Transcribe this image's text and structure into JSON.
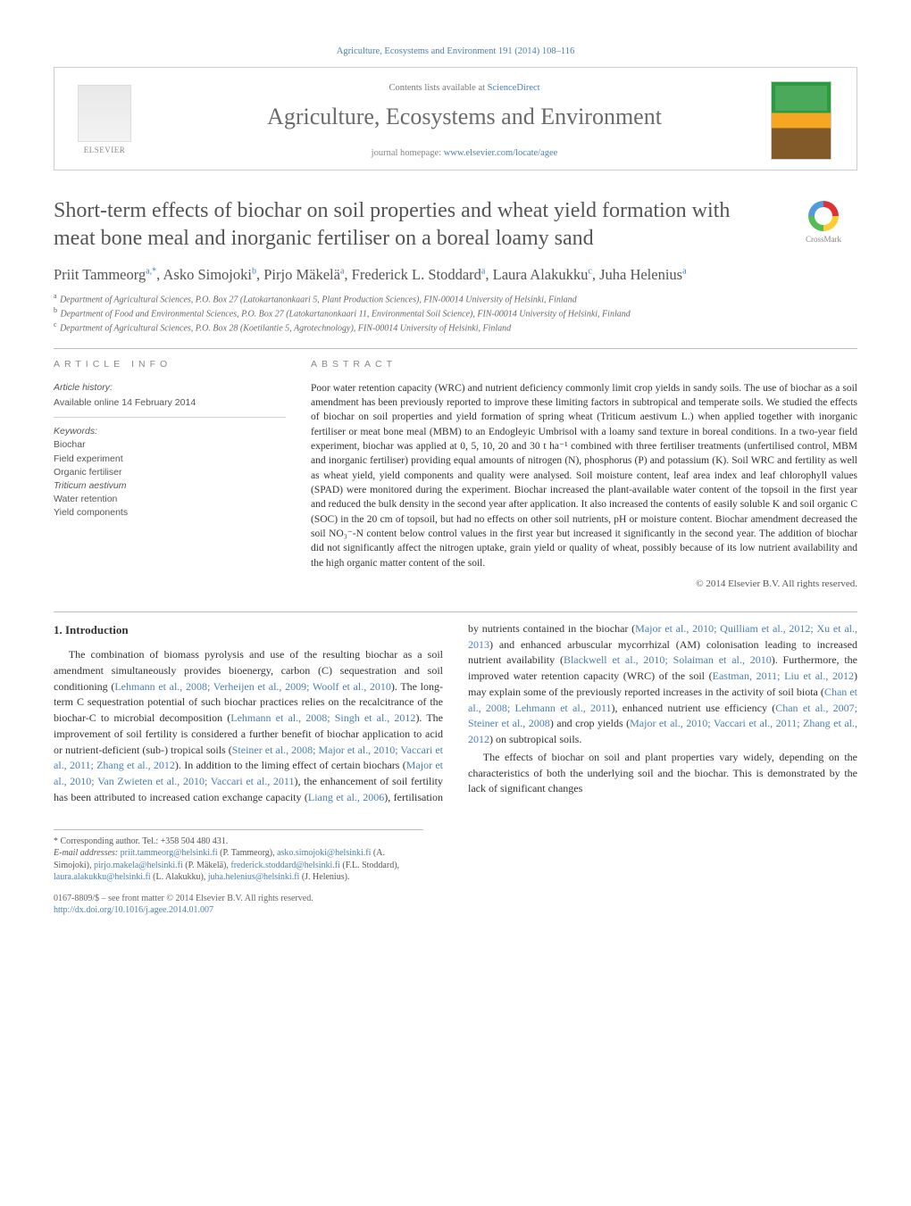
{
  "runningHead": "Agriculture, Ecosystems and Environment 191 (2014) 108–116",
  "masthead": {
    "contentsLine_pre": "Contents lists available at ",
    "contentsLine_link": "ScienceDirect",
    "journalName": "Agriculture, Ecosystems and Environment",
    "homepage_pre": "journal homepage: ",
    "homepage_link": "www.elsevier.com/locate/agee",
    "publisherWord": "ELSEVIER"
  },
  "crossmarkLabel": "CrossMark",
  "title": "Short-term effects of biochar on soil properties and wheat yield formation with meat bone meal and inorganic fertiliser on a boreal loamy sand",
  "authors": [
    {
      "name": "Priit Tammeorg",
      "marks": "a,*"
    },
    {
      "name": "Asko Simojoki",
      "marks": "b"
    },
    {
      "name": "Pirjo Mäkelä",
      "marks": "a"
    },
    {
      "name": "Frederick L. Stoddard",
      "marks": "a"
    },
    {
      "name": "Laura Alakukku",
      "marks": "c"
    },
    {
      "name": "Juha Helenius",
      "marks": "a"
    }
  ],
  "affiliations": [
    {
      "tag": "a",
      "text": "Department of Agricultural Sciences, P.O. Box 27 (Latokartanonkaari 5, Plant Production Sciences), FIN-00014 University of Helsinki, Finland"
    },
    {
      "tag": "b",
      "text": "Department of Food and Environmental Sciences, P.O. Box 27 (Latokartanonkaari 11, Environmental Soil Science), FIN-00014 University of Helsinki, Finland"
    },
    {
      "tag": "c",
      "text": "Department of Agricultural Sciences, P.O. Box 28 (Koetilantie 5, Agrotechnology), FIN-00014 University of Helsinki, Finland"
    }
  ],
  "info": {
    "heading": "article info",
    "historyLabel": "Article history:",
    "historyLine": "Available online 14 February 2014",
    "keywordsLabel": "Keywords:",
    "keywords": [
      "Biochar",
      "Field experiment",
      "Organic fertiliser",
      "Triticum aestivum",
      "Water retention",
      "Yield components"
    ]
  },
  "abstract": {
    "heading": "abstract",
    "text": "Poor water retention capacity (WRC) and nutrient deficiency commonly limit crop yields in sandy soils. The use of biochar as a soil amendment has been previously reported to improve these limiting factors in subtropical and temperate soils. We studied the effects of biochar on soil properties and yield formation of spring wheat (Triticum aestivum L.) when applied together with inorganic fertiliser or meat bone meal (MBM) to an Endogleyic Umbrisol with a loamy sand texture in boreal conditions. In a two-year field experiment, biochar was applied at 0, 5, 10, 20 and 30 t ha⁻¹ combined with three fertiliser treatments (unfertilised control, MBM and inorganic fertiliser) providing equal amounts of nitrogen (N), phosphorus (P) and potassium (K). Soil WRC and fertility as well as wheat yield, yield components and quality were analysed. Soil moisture content, leaf area index and leaf chlorophyll values (SPAD) were monitored during the experiment. Biochar increased the plant-available water content of the topsoil in the first year and reduced the bulk density in the second year after application. It also increased the contents of easily soluble K and soil organic C (SOC) in the 20 cm of topsoil, but had no effects on other soil nutrients, pH or moisture content. Biochar amendment decreased the soil NO₃⁻-N content below control values in the first year but increased it significantly in the second year. The addition of biochar did not significantly affect the nitrogen uptake, grain yield or quality of wheat, possibly because of its low nutrient availability and the high organic matter content of the soil.",
    "copyright": "© 2014 Elsevier B.V. All rights reserved."
  },
  "section1": {
    "heading": "1. Introduction",
    "p1_a": "The combination of biomass pyrolysis and use of the resulting biochar as a soil amendment simultaneously provides bioenergy, carbon (C) sequestration and soil conditioning (",
    "p1_c1": "Lehmann et al., 2008; Verheijen et al., 2009; Woolf et al., 2010",
    "p1_b": "). The long-term C sequestration potential of such biochar practices relies on the recalcitrance of the biochar-C to microbial decomposition (",
    "p1_c2": "Lehmann et al., 2008; Singh et al., 2012",
    "p1_c": "). The improvement of soil fertility is considered a further benefit of biochar application to acid or nutrient-deficient (sub-) tropical soils (",
    "p1_c3": "Steiner et al., 2008; Major et al., 2010; Vaccari et al., 2011; Zhang et al., 2012",
    "p1_d": "). In addition to the liming effect of certain biochars (",
    "p1_c4": "Major et al., 2010; Van Zwieten et al., 2010; Vaccari et al., 2011",
    "p1_e": "), the enhancement of soil fertility has been attributed to increased cation exchange capacity (",
    "p1_c5": "Liang et al., 2006",
    "p1_f": "), fertilisation by nutrients contained in the biochar (",
    "p1_c6": "Major et al., 2010; Quilliam et al., 2012; Xu et al., 2013",
    "p1_g": ") and enhanced arbuscular mycorrhizal (AM) colonisation leading to increased nutrient availability (",
    "p1_c7": "Blackwell et al., 2010; Solaiman et al., 2010",
    "p1_h": "). Furthermore, the improved water retention capacity (WRC) of the soil (",
    "p1_c8": "Eastman, 2011; Liu et al., 2012",
    "p1_i": ") may explain some of the previously reported increases in the activity of soil biota (",
    "p1_c9": "Chan et al., 2008; Lehmann et al., 2011",
    "p1_j": "), enhanced nutrient use efficiency (",
    "p1_c10": "Chan et al., 2007; Steiner et al., 2008",
    "p1_k": ") and crop yields (",
    "p1_c11": "Major et al., 2010; Vaccari et al., 2011; Zhang et al., 2012",
    "p1_l": ") on subtropical soils.",
    "p2": "The effects of biochar on soil and plant properties vary widely, depending on the characteristics of both the underlying soil and the biochar. This is demonstrated by the lack of significant changes"
  },
  "footnotes": {
    "corr": "* Corresponding author. Tel.: +358 504 480 431.",
    "emailsLabel": "E-mail addresses: ",
    "emails": [
      {
        "addr": "priit.tammeorg@helsinki.fi",
        "who": "(P. Tammeorg)"
      },
      {
        "addr": "asko.simojoki@helsinki.fi",
        "who": "(A. Simojoki)"
      },
      {
        "addr": "pirjo.makela@helsinki.fi",
        "who": "(P. Mäkelä)"
      },
      {
        "addr": "frederick.stoddard@helsinki.fi",
        "who": "(F.L. Stoddard)"
      },
      {
        "addr": "laura.alakukku@helsinki.fi",
        "who": "(L. Alakukku)"
      },
      {
        "addr": "juha.helenius@helsinki.fi",
        "who": "(J. Helenius)"
      }
    ],
    "issn": "0167-8809/$ – see front matter © 2014 Elsevier B.V. All rights reserved.",
    "doi": "http://dx.doi.org/10.1016/j.agee.2014.01.007"
  },
  "colors": {
    "link": "#4a7fb5",
    "text": "#333333",
    "muted": "#6b6b6b",
    "rule": "#bdbdbd"
  }
}
